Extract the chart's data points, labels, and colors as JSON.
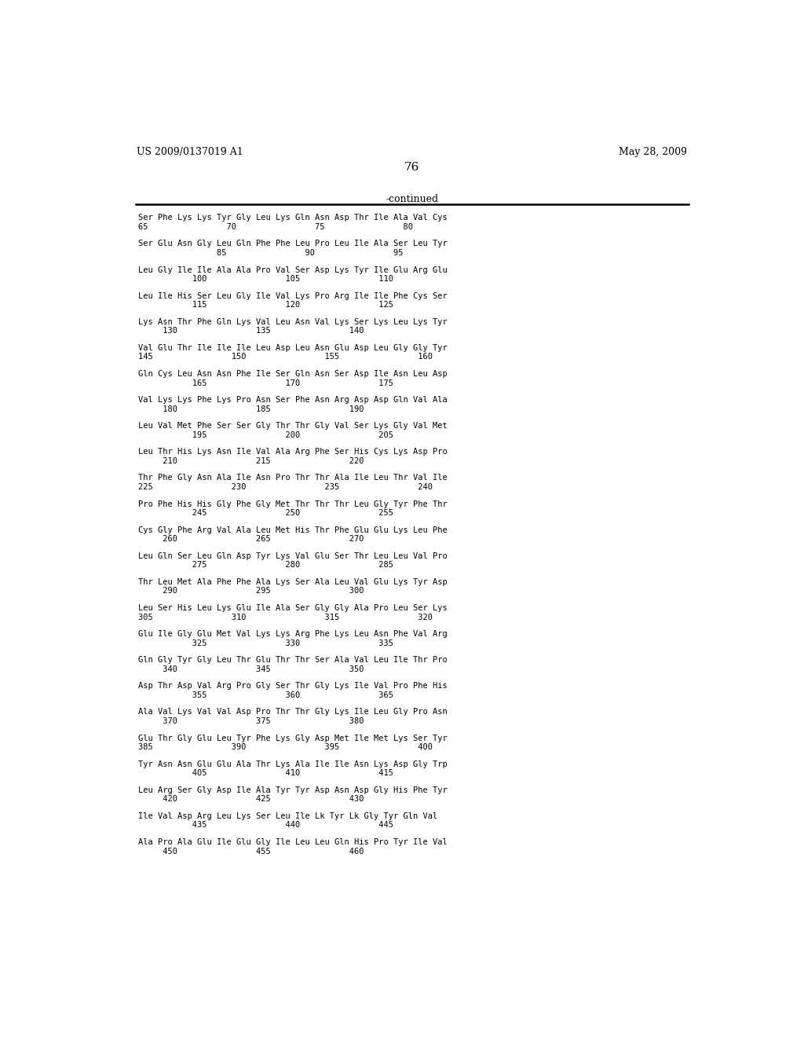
{
  "header_left": "US 2009/0137019 A1",
  "header_right": "May 28, 2009",
  "page_number": "76",
  "continued_label": "-continued",
  "background_color": "#ffffff",
  "text_color": "#000000",
  "sequences": [
    [
      "Ser Phe Lys Lys Tyr Gly Leu Lys Gln Asn Asp Thr Ile Ala Val Cys",
      "65                70                75                80"
    ],
    [
      "Ser Glu Asn Gly Leu Gln Phe Phe Leu Pro Leu Ile Ala Ser Leu Tyr",
      "                85                90                95"
    ],
    [
      "Leu Gly Ile Ile Ala Ala Pro Val Ser Asp Lys Tyr Ile Glu Arg Glu",
      "           100                105                110"
    ],
    [
      "Leu Ile His Ser Leu Gly Ile Val Lys Pro Arg Ile Ile Phe Cys Ser",
      "           115                120                125"
    ],
    [
      "Lys Asn Thr Phe Gln Lys Val Leu Asn Val Lys Ser Lys Leu Lys Tyr",
      "     130                135                140"
    ],
    [
      "Val Glu Thr Ile Ile Ile Leu Asp Leu Asn Glu Asp Leu Gly Gly Tyr",
      "145                150                155                160"
    ],
    [
      "Gln Cys Leu Asn Asn Phe Ile Ser Gln Asn Ser Asp Ile Asn Leu Asp",
      "           165                170                175"
    ],
    [
      "Val Lys Lys Phe Lys Pro Asn Ser Phe Asn Arg Asp Asp Gln Val Ala",
      "     180                185                190"
    ],
    [
      "Leu Val Met Phe Ser Ser Gly Thr Thr Gly Val Ser Lys Gly Val Met",
      "           195                200                205"
    ],
    [
      "Leu Thr His Lys Asn Ile Val Ala Arg Phe Ser His Cys Lys Asp Pro",
      "     210                215                220"
    ],
    [
      "Thr Phe Gly Asn Ala Ile Asn Pro Thr Thr Ala Ile Leu Thr Val Ile",
      "225                230                235                240"
    ],
    [
      "Pro Phe His His Gly Phe Gly Met Thr Thr Thr Leu Gly Tyr Phe Thr",
      "           245                250                255"
    ],
    [
      "Cys Gly Phe Arg Val Ala Leu Met His Thr Phe Glu Glu Lys Leu Phe",
      "     260                265                270"
    ],
    [
      "Leu Gln Ser Leu Gln Asp Tyr Lys Val Glu Ser Thr Leu Leu Val Pro",
      "           275                280                285"
    ],
    [
      "Thr Leu Met Ala Phe Phe Ala Lys Ser Ala Leu Val Glu Lys Tyr Asp",
      "     290                295                300"
    ],
    [
      "Leu Ser His Leu Lys Glu Ile Ala Ser Gly Gly Ala Pro Leu Ser Lys",
      "305                310                315                320"
    ],
    [
      "Glu Ile Gly Glu Met Val Lys Lys Arg Phe Lys Leu Asn Phe Val Arg",
      "           325                330                335"
    ],
    [
      "Gln Gly Tyr Gly Leu Thr Glu Thr Thr Ser Ala Val Leu Ile Thr Pro",
      "     340                345                350"
    ],
    [
      "Asp Thr Asp Val Arg Pro Gly Ser Thr Gly Lys Ile Val Pro Phe His",
      "           355                360                365"
    ],
    [
      "Ala Val Lys Val Val Asp Pro Thr Thr Gly Lys Ile Leu Gly Pro Asn",
      "     370                375                380"
    ],
    [
      "Glu Thr Gly Glu Leu Tyr Phe Lys Gly Asp Met Ile Met Lys Ser Tyr",
      "385                390                395                400"
    ],
    [
      "Tyr Asn Asn Glu Glu Ala Thr Lys Ala Ile Ile Asn Lys Asp Gly Trp",
      "           405                410                415"
    ],
    [
      "Leu Arg Ser Gly Asp Ile Ala Tyr Tyr Asp Asn Asp Gly His Phe Tyr",
      "     420                425                430"
    ],
    [
      "Ile Val Asp Arg Leu Lys Ser Leu Ile Lk Tyr Lk Gly Tyr Gln Val",
      "           435                440                445"
    ],
    [
      "Ala Pro Ala Glu Ile Glu Gly Ile Leu Leu Gln His Pro Tyr Ile Val",
      "     450                455                460"
    ]
  ]
}
